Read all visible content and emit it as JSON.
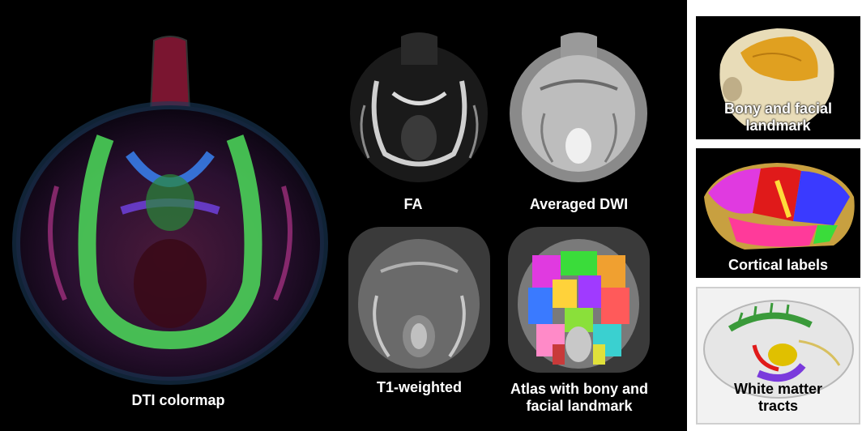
{
  "main_panel": {
    "dti_label": "DTI colormap",
    "fa_label": "FA",
    "dwi_label": "Averaged DWI",
    "t1_label": "T1-weighted",
    "atlas_label_line1": "Atlas with bony and",
    "atlas_label_line2": "facial landmark"
  },
  "side_panels": {
    "bony_label_line1": "Bony and facial",
    "bony_label_line2": "landmark",
    "cortical_label": "Cortical labels",
    "wm_label_line1": "White matter",
    "wm_label_line2": "tracts"
  },
  "colors": {
    "background_main": "#000000",
    "background_wm_panel": "#f2f2f2",
    "label_text": "#ffffff",
    "wm_label_text": "#000000"
  }
}
